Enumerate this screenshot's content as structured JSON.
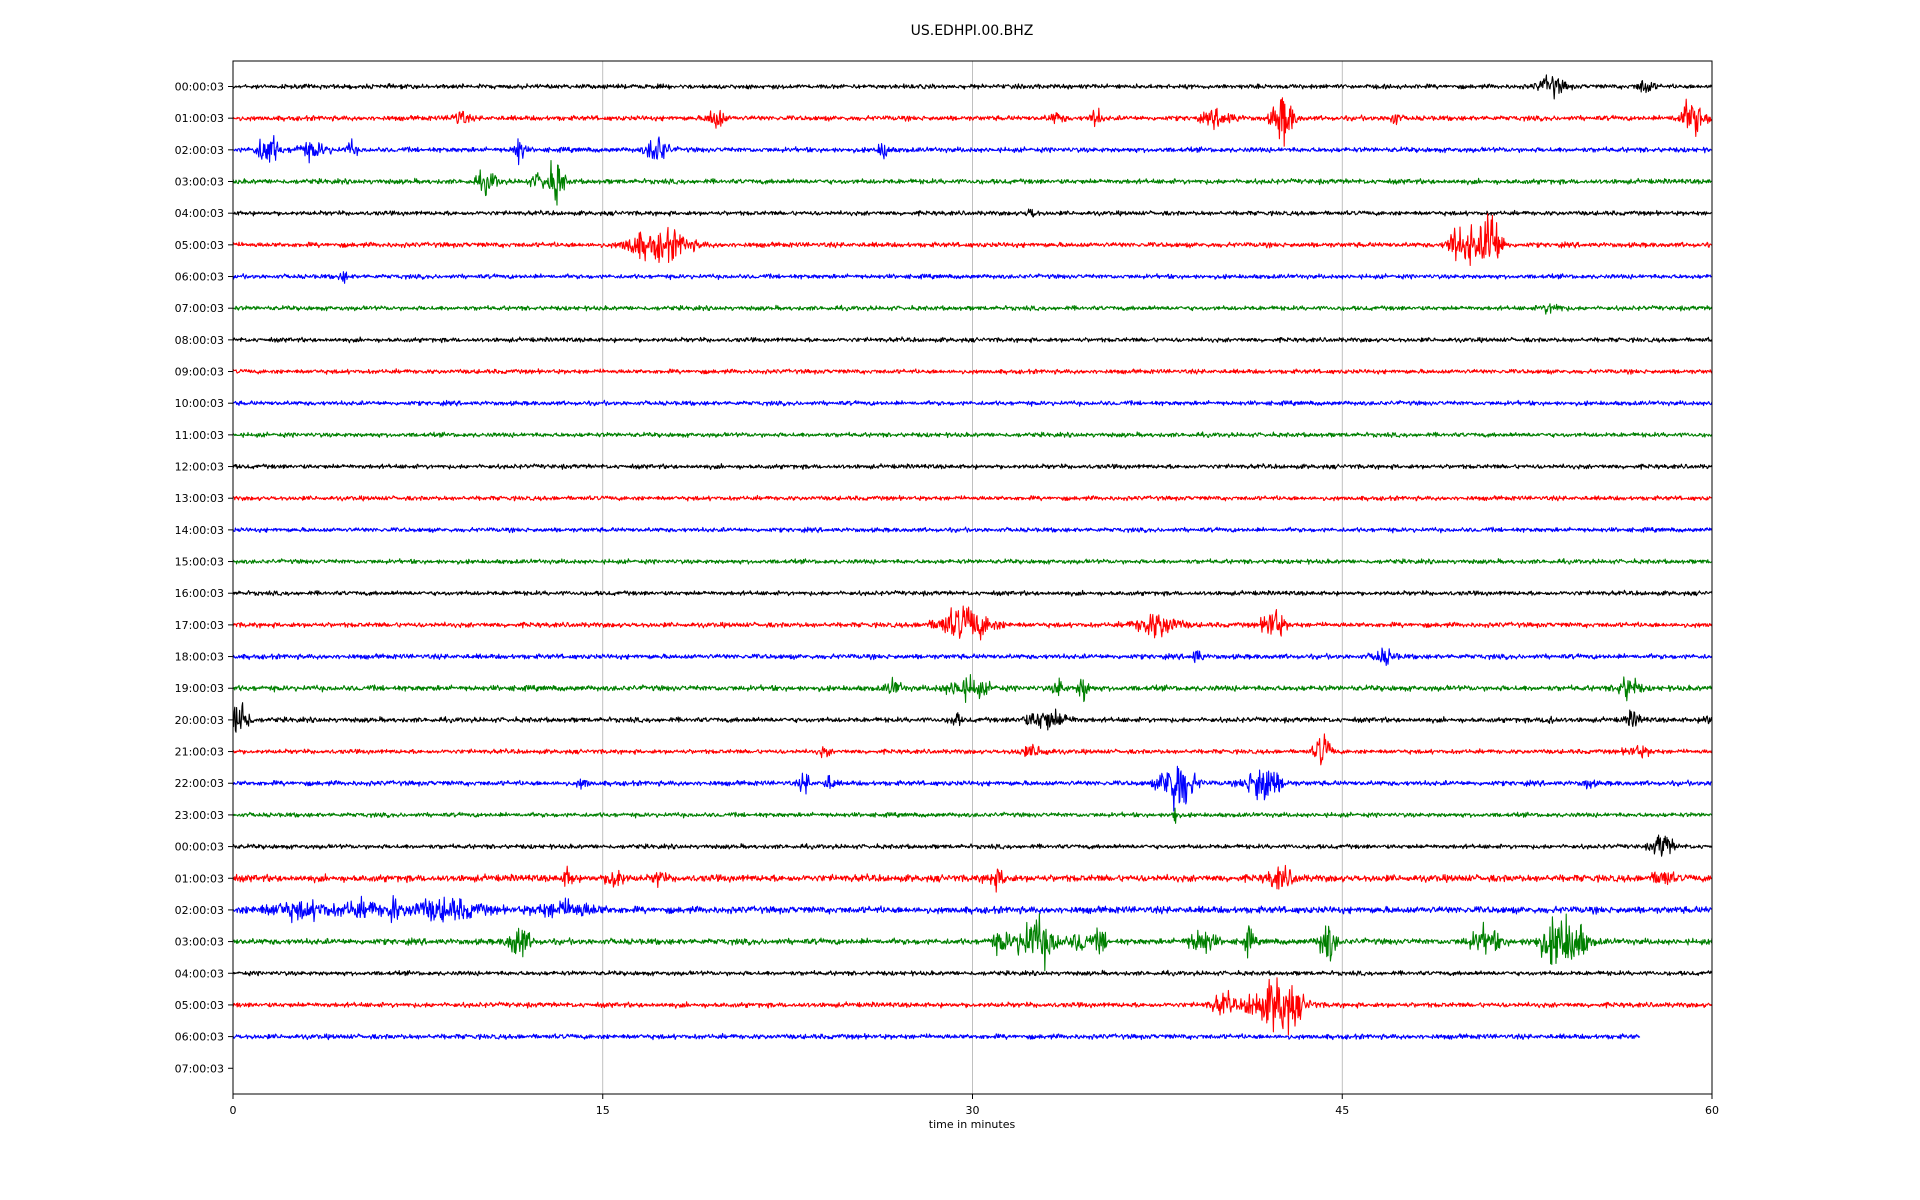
{
  "chart_data": {
    "type": "line",
    "title": "US.EDHPI.00.BHZ",
    "xlabel": "time in minutes",
    "ylabel": "",
    "xlim": [
      0,
      60
    ],
    "x_ticks": [
      0,
      15,
      30,
      45,
      60
    ],
    "grid_x": true,
    "grid_y": false,
    "legend": "none",
    "row_labels": [
      "00:00:03",
      "01:00:03",
      "02:00:03",
      "03:00:03",
      "04:00:03",
      "05:00:03",
      "06:00:03",
      "07:00:03",
      "08:00:03",
      "09:00:03",
      "10:00:03",
      "11:00:03",
      "12:00:03",
      "13:00:03",
      "14:00:03",
      "15:00:03",
      "16:00:03",
      "17:00:03",
      "18:00:03",
      "19:00:03",
      "20:00:03",
      "21:00:03",
      "22:00:03",
      "23:00:03",
      "00:00:03",
      "01:00:03",
      "02:00:03",
      "03:00:03",
      "04:00:03",
      "05:00:03",
      "06:00:03",
      "07:00:03"
    ],
    "colors": [
      "#000000",
      "#ff0000",
      "#0000ff",
      "#008000"
    ],
    "traces": [
      {
        "row": 0,
        "color": "#000000",
        "end": 60,
        "noise": 0.9,
        "events": [
          [
            53.5,
            4,
            0.5
          ],
          [
            57.3,
            3,
            0.3
          ]
        ]
      },
      {
        "row": 1,
        "color": "#ff0000",
        "end": 60,
        "noise": 1.0,
        "events": [
          [
            9.2,
            3,
            0.3
          ],
          [
            19.6,
            5,
            0.3
          ],
          [
            33.4,
            2,
            0.3
          ],
          [
            35.0,
            4,
            0.2
          ],
          [
            40.0,
            3,
            0.6
          ],
          [
            42.6,
            10,
            0.4
          ],
          [
            47.1,
            3,
            0.2
          ],
          [
            59.2,
            7,
            0.5
          ]
        ]
      },
      {
        "row": 2,
        "color": "#0000ff",
        "end": 60,
        "noise": 1.0,
        "events": [
          [
            1.4,
            7,
            0.4
          ],
          [
            3.2,
            3,
            0.6
          ],
          [
            4.8,
            3,
            0.2
          ],
          [
            11.6,
            6,
            0.2
          ],
          [
            17.2,
            6,
            0.4
          ],
          [
            26.4,
            4,
            0.2
          ]
        ]
      },
      {
        "row": 3,
        "color": "#008000",
        "end": 60,
        "noise": 1.0,
        "events": [
          [
            10.3,
            4,
            0.4
          ],
          [
            12.5,
            3,
            0.4
          ],
          [
            13.1,
            9,
            0.3
          ]
        ]
      },
      {
        "row": 4,
        "color": "#000000",
        "end": 60,
        "noise": 0.9,
        "events": [
          [
            32.4,
            2,
            0.2
          ]
        ]
      },
      {
        "row": 5,
        "color": "#ff0000",
        "end": 60,
        "noise": 1.0,
        "events": [
          [
            16.5,
            5,
            0.6
          ],
          [
            17.5,
            6,
            1.0
          ],
          [
            49.6,
            8,
            0.3
          ],
          [
            50.2,
            9,
            0.3
          ],
          [
            51.0,
            16,
            0.4
          ]
        ]
      },
      {
        "row": 6,
        "color": "#0000ff",
        "end": 60,
        "noise": 0.9,
        "events": [
          [
            4.5,
            2,
            0.2
          ]
        ]
      },
      {
        "row": 7,
        "color": "#008000",
        "end": 60,
        "noise": 0.9,
        "events": [
          [
            53.5,
            2,
            0.4
          ]
        ]
      },
      {
        "row": 8,
        "color": "#000000",
        "end": 60,
        "noise": 0.9,
        "events": []
      },
      {
        "row": 9,
        "color": "#ff0000",
        "end": 60,
        "noise": 0.9,
        "events": []
      },
      {
        "row": 10,
        "color": "#0000ff",
        "end": 60,
        "noise": 0.9,
        "events": []
      },
      {
        "row": 11,
        "color": "#008000",
        "end": 60,
        "noise": 0.9,
        "events": []
      },
      {
        "row": 12,
        "color": "#000000",
        "end": 60,
        "noise": 0.9,
        "events": []
      },
      {
        "row": 13,
        "color": "#ff0000",
        "end": 60,
        "noise": 0.9,
        "events": []
      },
      {
        "row": 14,
        "color": "#0000ff",
        "end": 60,
        "noise": 0.9,
        "events": []
      },
      {
        "row": 15,
        "color": "#008000",
        "end": 60,
        "noise": 0.9,
        "events": []
      },
      {
        "row": 16,
        "color": "#000000",
        "end": 60,
        "noise": 0.9,
        "events": []
      },
      {
        "row": 17,
        "color": "#ff0000",
        "end": 60,
        "noise": 1.0,
        "events": [
          [
            29.7,
            7,
            1.0
          ],
          [
            37.5,
            5,
            0.8
          ],
          [
            42.2,
            7,
            0.4
          ]
        ]
      },
      {
        "row": 18,
        "color": "#0000ff",
        "end": 60,
        "noise": 1.0,
        "events": [
          [
            39.1,
            3,
            0.2
          ],
          [
            46.7,
            3,
            0.4
          ]
        ]
      },
      {
        "row": 19,
        "color": "#008000",
        "end": 60,
        "noise": 1.1,
        "events": [
          [
            26.8,
            3,
            0.3
          ],
          [
            29.8,
            4,
            0.8
          ],
          [
            33.5,
            4,
            0.2
          ],
          [
            34.5,
            6,
            0.2
          ],
          [
            56.6,
            5,
            0.4
          ]
        ]
      },
      {
        "row": 20,
        "color": "#000000",
        "end": 60,
        "noise": 1.0,
        "events": [
          [
            0.3,
            10,
            0.3
          ],
          [
            29.3,
            3,
            0.2
          ],
          [
            33.0,
            4,
            0.8
          ],
          [
            53.4,
            2,
            0.2
          ],
          [
            56.8,
            3,
            0.3
          ],
          [
            59.8,
            2,
            0.2
          ]
        ]
      },
      {
        "row": 21,
        "color": "#ff0000",
        "end": 60,
        "noise": 0.9,
        "events": [
          [
            24.0,
            2,
            0.2
          ],
          [
            32.5,
            2,
            0.6
          ],
          [
            44.2,
            7,
            0.3
          ],
          [
            57.0,
            2,
            0.5
          ]
        ]
      },
      {
        "row": 22,
        "color": "#0000ff",
        "end": 60,
        "noise": 1.0,
        "events": [
          [
            14.2,
            2,
            0.2
          ],
          [
            23.2,
            4,
            0.2
          ],
          [
            24.2,
            3,
            0.2
          ],
          [
            38.3,
            12,
            0.6
          ],
          [
            41.8,
            9,
            0.6
          ],
          [
            55.0,
            2,
            0.2
          ]
        ]
      },
      {
        "row": 23,
        "color": "#008000",
        "end": 60,
        "noise": 0.9,
        "events": [
          [
            38.2,
            6,
            0.1
          ]
        ]
      },
      {
        "row": 24,
        "color": "#000000",
        "end": 60,
        "noise": 0.9,
        "events": [
          [
            58.0,
            5,
            0.4
          ]
        ]
      },
      {
        "row": 25,
        "color": "#ff0000",
        "end": 60,
        "noise": 1.4,
        "events": [
          [
            13.6,
            4,
            0.2
          ],
          [
            15.5,
            5,
            0.3
          ],
          [
            17.3,
            3,
            0.2
          ],
          [
            31.0,
            3,
            0.4
          ],
          [
            42.5,
            4,
            0.5
          ],
          [
            58.0,
            3,
            0.4
          ]
        ]
      },
      {
        "row": 26,
        "color": "#0000ff",
        "end": 60,
        "noise": 1.4,
        "events": [
          [
            2.8,
            3,
            1.5
          ],
          [
            5.2,
            3,
            1.0
          ],
          [
            6.5,
            6,
            0.2
          ],
          [
            8.5,
            4,
            1.5
          ],
          [
            13.5,
            3,
            1.2
          ]
        ]
      },
      {
        "row": 27,
        "color": "#008000",
        "end": 60,
        "noise": 1.2,
        "events": [
          [
            11.6,
            7,
            0.4
          ],
          [
            31.2,
            4,
            0.4
          ],
          [
            32.6,
            9,
            0.8
          ],
          [
            34.4,
            4,
            0.4
          ],
          [
            35.2,
            6,
            0.2
          ],
          [
            39.3,
            5,
            0.5
          ],
          [
            41.2,
            5,
            0.2
          ],
          [
            44.4,
            9,
            0.3
          ],
          [
            50.8,
            5,
            0.6
          ],
          [
            53.9,
            11,
            0.8
          ],
          [
            54.5,
            9,
            0.4
          ]
        ]
      },
      {
        "row": 28,
        "color": "#000000",
        "end": 60,
        "noise": 0.9,
        "events": []
      },
      {
        "row": 29,
        "color": "#ff0000",
        "end": 60,
        "noise": 1.0,
        "events": [
          [
            40.2,
            4,
            0.5
          ],
          [
            41.5,
            6,
            0.5
          ],
          [
            42.5,
            12,
            0.8
          ]
        ]
      },
      {
        "row": 30,
        "color": "#0000ff",
        "end": 57.1,
        "noise": 1.0,
        "events": []
      }
    ]
  }
}
